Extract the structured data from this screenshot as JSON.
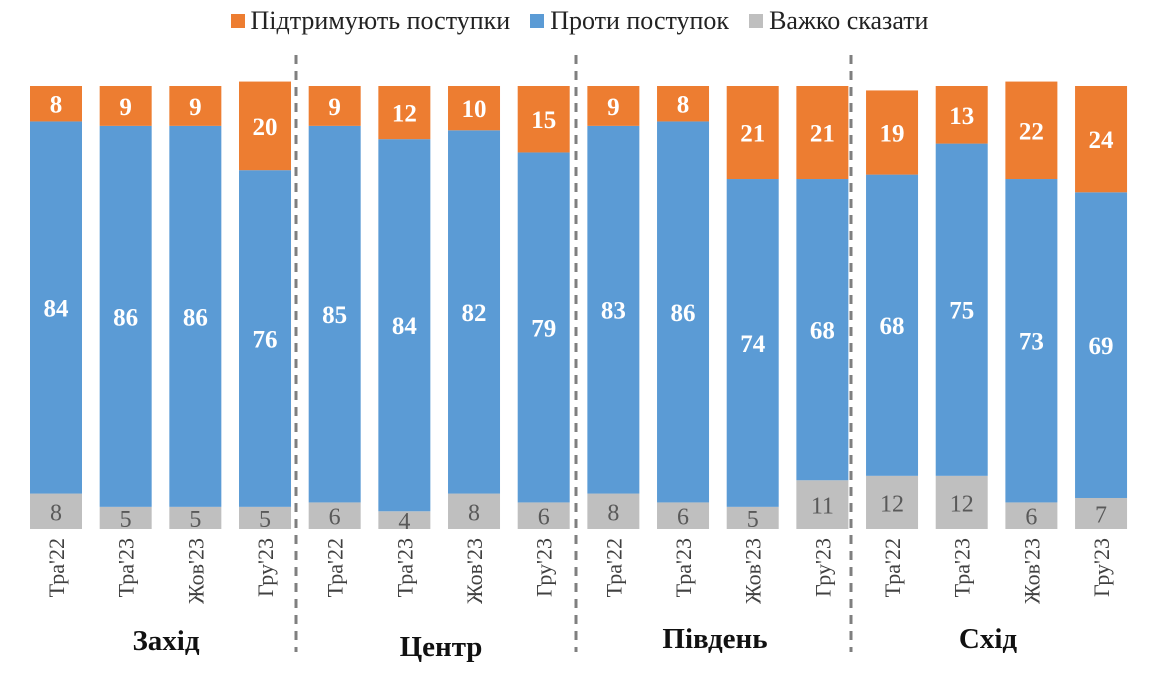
{
  "legend": [
    {
      "label": "Підтримують поступки",
      "color": "#ED7D31"
    },
    {
      "label": "Проти поступок",
      "color": "#5B9BD5"
    },
    {
      "label": "Важко сказати",
      "color": "#BFBFBF"
    }
  ],
  "chart_data": {
    "type": "bar",
    "stacked": true,
    "ylim": [
      0,
      100
    ],
    "grid": false,
    "legend_position": "top",
    "groups": [
      "Захід",
      "Центр",
      "Південь",
      "Схід"
    ],
    "categories": [
      "Тра'22",
      "Тра'23",
      "Жов'23",
      "Гру'23",
      "Тра'22",
      "Тра'23",
      "Жов'23",
      "Гру'23",
      "Тра'22",
      "Тра'23",
      "Жов'23",
      "Гру'23",
      "Тра'22",
      "Тра'23",
      "Жов'23",
      "Гру'23"
    ],
    "series": [
      {
        "name": "Важко сказати",
        "color": "#BFBFBF",
        "label_color": "#595959",
        "values": [
          8,
          5,
          5,
          5,
          6,
          4,
          8,
          6,
          8,
          6,
          5,
          11,
          12,
          12,
          6,
          7
        ]
      },
      {
        "name": "Проти поступок",
        "color": "#5B9BD5",
        "label_color": "#ffffff",
        "values": [
          84,
          86,
          86,
          76,
          85,
          84,
          82,
          79,
          83,
          86,
          74,
          68,
          68,
          75,
          73,
          69
        ]
      },
      {
        "name": "Підтримують поступки",
        "color": "#ED7D31",
        "label_color": "#ffffff",
        "values": [
          8,
          9,
          9,
          20,
          9,
          12,
          10,
          15,
          9,
          8,
          21,
          21,
          19,
          13,
          22,
          24
        ]
      }
    ]
  }
}
